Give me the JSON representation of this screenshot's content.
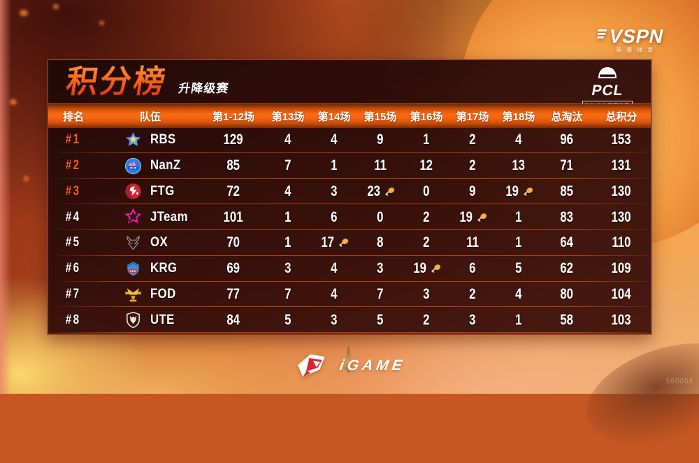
{
  "brand": {
    "vspn": "VSPN",
    "vspn_sub": "英雄体育",
    "pcl": "PCL",
    "pcl_sub": "绝地求生冠军联赛",
    "igame": "iGAME"
  },
  "scoreboard": {
    "title": "积分榜",
    "subtitle": "升降级赛",
    "accent_color": "#f96b12",
    "rank_highlight_color": "#ff5c17",
    "columns": [
      "排名",
      "队伍",
      "第1-12场",
      "第13场",
      "第14场",
      "第15场",
      "第16场",
      "第17场",
      "第18场",
      "总淘汰",
      "总积分"
    ],
    "rows": [
      {
        "rank": "#1",
        "team": "RBS",
        "logo": "rbs",
        "scores": [
          "129",
          "4",
          "4",
          "9",
          "1",
          "2",
          "4"
        ],
        "chicken_cols": [],
        "eliminations": "96",
        "points": "153"
      },
      {
        "rank": "#2",
        "team": "NanZ",
        "logo": "nanz",
        "scores": [
          "85",
          "7",
          "1",
          "11",
          "12",
          "2",
          "13"
        ],
        "chicken_cols": [],
        "eliminations": "71",
        "points": "131"
      },
      {
        "rank": "#3",
        "team": "FTG",
        "logo": "ftg",
        "scores": [
          "72",
          "4",
          "3",
          "23",
          "0",
          "9",
          "19"
        ],
        "chicken_cols": [
          3,
          6
        ],
        "eliminations": "85",
        "points": "130"
      },
      {
        "rank": "#4",
        "team": "JTeam",
        "logo": "jteam",
        "scores": [
          "101",
          "1",
          "6",
          "0",
          "2",
          "19",
          "1"
        ],
        "chicken_cols": [
          5
        ],
        "eliminations": "83",
        "points": "130"
      },
      {
        "rank": "#5",
        "team": "OX",
        "logo": "ox",
        "scores": [
          "70",
          "1",
          "17",
          "8",
          "2",
          "11",
          "1"
        ],
        "chicken_cols": [
          2
        ],
        "eliminations": "64",
        "points": "110"
      },
      {
        "rank": "#6",
        "team": "KRG",
        "logo": "krg",
        "scores": [
          "69",
          "3",
          "4",
          "3",
          "19",
          "6",
          "5"
        ],
        "chicken_cols": [
          4
        ],
        "eliminations": "62",
        "points": "109"
      },
      {
        "rank": "#7",
        "team": "FOD",
        "logo": "fod",
        "scores": [
          "77",
          "7",
          "4",
          "7",
          "3",
          "2",
          "4"
        ],
        "chicken_cols": [],
        "eliminations": "80",
        "points": "104"
      },
      {
        "rank": "#8",
        "team": "UTE",
        "logo": "ute",
        "scores": [
          "84",
          "5",
          "3",
          "5",
          "2",
          "3",
          "1"
        ],
        "chicken_cols": [],
        "eliminations": "58",
        "points": "103"
      }
    ]
  },
  "watermark": "560004"
}
